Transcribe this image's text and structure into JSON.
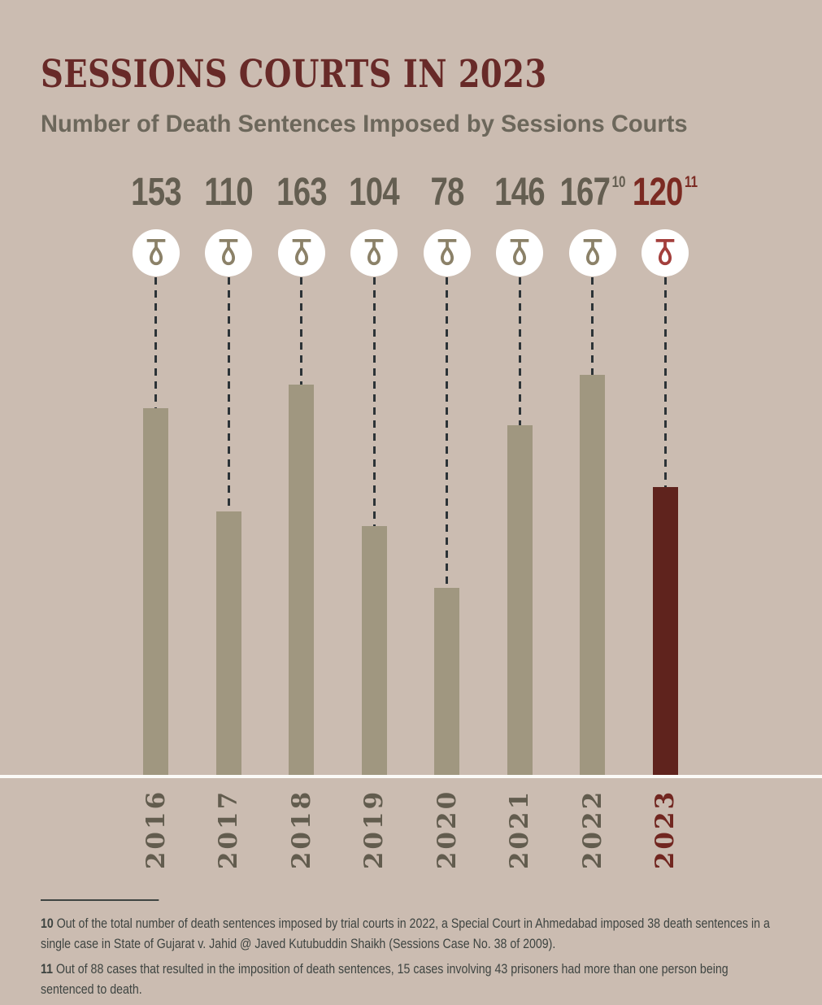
{
  "title": "SESSIONS COURTS IN 2023",
  "subtitle": "Number of Death Sentences Imposed by Sessions Courts",
  "chart_data": {
    "type": "bar",
    "title": "Number of Death Sentences Imposed by Sessions Courts",
    "categories": [
      "2016",
      "2017",
      "2018",
      "2019",
      "2020",
      "2021",
      "2022",
      "2023"
    ],
    "values": [
      153,
      110,
      163,
      104,
      78,
      146,
      167,
      120
    ],
    "footnote_markers": {
      "2022": "10",
      "2023": "11"
    },
    "highlight_category": "2023",
    "ylim": [
      0,
      167
    ],
    "grid": false,
    "legend": false,
    "style": "hanging bars suspended from noose icons by dashed lines, value labels on top, year labels rotated 90deg below baseline",
    "icon": "noose-icon"
  },
  "footnotes": [
    {
      "num": "10",
      "text": "Out of the total number of death sentences imposed by trial courts in 2022, a Special Court in Ahmedabad imposed 38 death sentences in a single case in State of Gujarat v. Jahid @ Javed Kutubuddin Shaikh (Sessions Case No. 38 of 2009)."
    },
    {
      "num": "11",
      "text": "Out of 88 cases that resulted in the imposition of death sentences, 15 cases involving 43 prisoners had more than one person being sentenced to death."
    }
  ],
  "colors": {
    "background": "#cbbcb1",
    "title": "#682a28",
    "subtitle": "#6c675b",
    "value": "#645e51",
    "value_highlight": "#7b2a22",
    "bar": "#a09780",
    "bar_highlight": "#5f231d",
    "icon": "#8b8168",
    "icon_highlight": "#a33f3c",
    "dash": "#2c3337",
    "circle_bg": "#ffffff",
    "year": "#625c4e",
    "year_highlight": "#712620",
    "divider_line": "#fbfaf7",
    "footnote_text": "#3e4441"
  }
}
